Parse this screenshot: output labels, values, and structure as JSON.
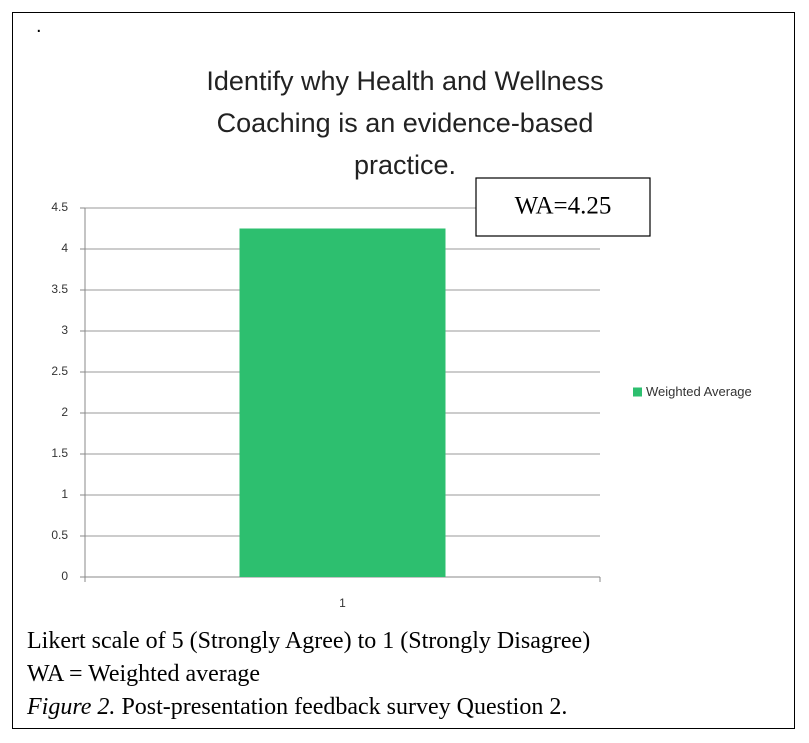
{
  "page_mark": ".",
  "chart_data": {
    "type": "bar",
    "title": [
      "Identify why Health and Wellness",
      "Coaching is an evidence-based",
      "practice."
    ],
    "categories": [
      "1"
    ],
    "series": [
      {
        "name": "Weighted Average",
        "color": "#2dbf6f",
        "values": [
          4.25
        ]
      }
    ],
    "ylim": [
      0,
      4.5
    ],
    "yticks": [
      0,
      0.5,
      1,
      1.5,
      2,
      2.5,
      3,
      3.5,
      4,
      4.5
    ],
    "grid": true,
    "legend": "right",
    "annotation": "WA=4.25"
  },
  "notes": [
    "Likert scale of 5 (Strongly Agree) to 1 (Strongly Disagree)",
    "WA = Weighted average"
  ],
  "figure_label": "Figure 2.",
  "figure_caption": "Post-presentation feedback survey Question 2."
}
